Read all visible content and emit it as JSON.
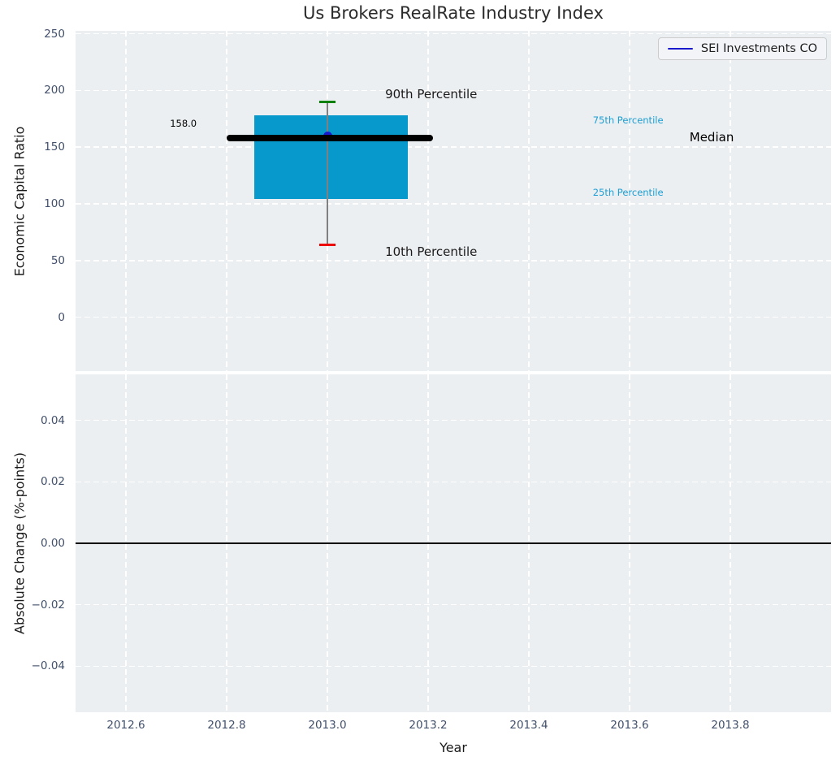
{
  "title": "Us Brokers RealRate Industry Index",
  "chart_data": [
    {
      "type": "box",
      "title": "Us Brokers RealRate Industry Index",
      "ylabel": "Economic Capital Ratio",
      "xlim": [
        2012.5,
        2014.0
      ],
      "ylim": [
        -47.5,
        252.5
      ],
      "grid": "white-dashed",
      "background": "#eceff1",
      "yticks": [
        0,
        50,
        100,
        150,
        200,
        250
      ],
      "yticklabels": [
        "0",
        "50",
        "100",
        "150",
        "200",
        "250"
      ],
      "xticks": [
        2012.6,
        2012.8,
        2013.0,
        2013.2,
        2013.4,
        2013.6,
        2013.8
      ],
      "box": {
        "x_center": 2013.0,
        "box_x0": 2012.855,
        "box_x1": 2013.16,
        "median": 158.0,
        "median_x0": 2012.8,
        "median_x1": 2013.21,
        "p10": 64,
        "p25": 104,
        "p75": 178,
        "p90": 190,
        "cap_halfwidth_years": 0.016,
        "box_color": "#0899cc",
        "median_color": "#000000",
        "whisker_color": "#808080",
        "p90_cap_color": "#008000",
        "p10_cap_color": "#ee0000"
      },
      "series": [
        {
          "name": "SEI Investments CO",
          "color": "#1a1acc",
          "points": [
            {
              "x": 2013.0,
              "y": 158.0
            }
          ]
        }
      ],
      "annotations": [
        {
          "text": "158.0",
          "x": 2012.714,
          "y": 171,
          "color": "#000000",
          "size": 11.5
        },
        {
          "text": "90th Percentile",
          "x": 2013.206,
          "y": 197,
          "color": "#1a1a1a",
          "size": 15
        },
        {
          "text": "10th Percentile",
          "x": 2013.206,
          "y": 58,
          "color": "#1a1a1a",
          "size": 15
        },
        {
          "text": "75th Percentile",
          "x": 2013.597,
          "y": 174,
          "color": "#1b9ed3",
          "size": 11.5
        },
        {
          "text": "25th Percentile",
          "x": 2013.597,
          "y": 110,
          "color": "#1b9ed3",
          "size": 11.5
        },
        {
          "text": "Median",
          "x": 2013.763,
          "y": 159,
          "color": "#000000",
          "size": 15
        }
      ],
      "legend": {
        "label": "SEI Investments CO",
        "line_color": "#1a1acc",
        "position": "upper right"
      }
    },
    {
      "type": "line",
      "ylabel": "Absolute Change (%-points)",
      "xlabel": "Year",
      "xlim": [
        2012.5,
        2014.0
      ],
      "ylim": [
        -0.055,
        0.055
      ],
      "grid": "white-dashed",
      "background": "#eceff1",
      "yticks": [
        -0.04,
        -0.02,
        0.0,
        0.02,
        0.04
      ],
      "yticklabels": [
        "−0.04",
        "−0.02",
        "0.00",
        "0.02",
        "0.04"
      ],
      "xticks": [
        2012.6,
        2012.8,
        2013.0,
        2013.2,
        2013.4,
        2013.6,
        2013.8
      ],
      "xticklabels": [
        "2012.6",
        "2012.8",
        "2013.0",
        "2013.2",
        "2013.4",
        "2013.6",
        "2013.8"
      ],
      "zero_line": {
        "y": 0.0,
        "color": "#000000"
      },
      "series": []
    }
  ]
}
